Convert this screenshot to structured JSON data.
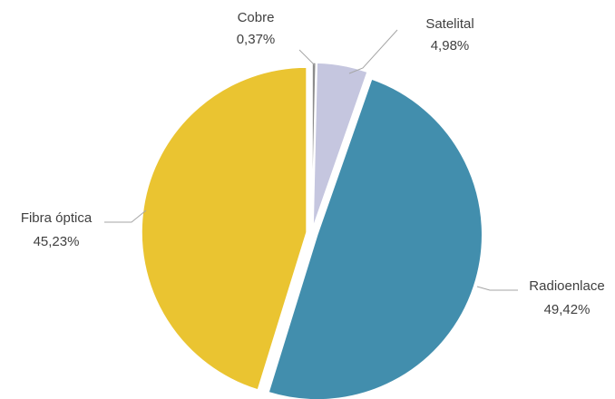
{
  "chart_data": {
    "type": "pie",
    "slices": [
      {
        "label": "Cobre",
        "value_label": "0,37%",
        "value": 0.37,
        "color": "#8c8c8c"
      },
      {
        "label": "Satelital",
        "value_label": "4,98%",
        "value": 4.98,
        "color": "#c5c6df"
      },
      {
        "label": "Radioenlace",
        "value_label": "49,42%",
        "value": 49.42,
        "color": "#428ead"
      },
      {
        "label": "Fibra óptica",
        "value_label": "45,23%",
        "value": 45.23,
        "color": "#eac431"
      }
    ],
    "exploded": true,
    "start_angle": "12 o'clock, clockwise",
    "legend": "none",
    "data_labels": "outside with leader lines"
  }
}
